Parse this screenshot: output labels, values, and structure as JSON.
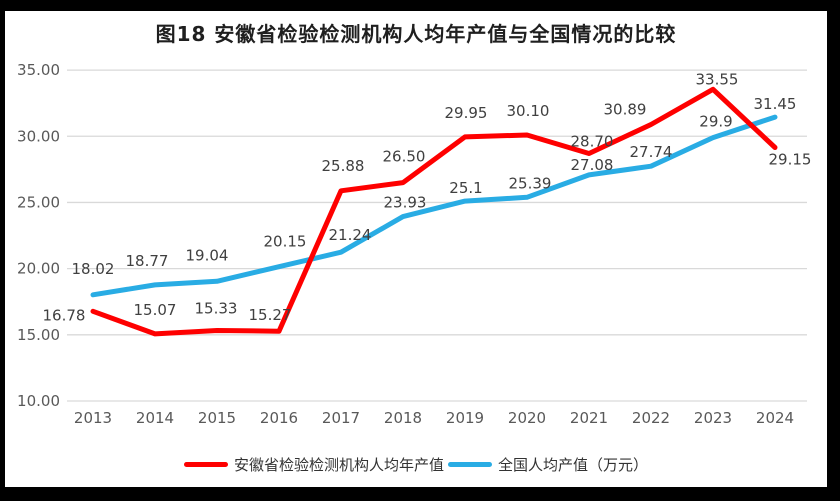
{
  "title": "图18 安徽省检验检测机构人均年产值与全国情况的比较",
  "chart_data": {
    "type": "line",
    "title": "图18 安徽省检验检测机构人均年产值与全国情况的比较",
    "categories": [
      "2013",
      "2014",
      "2015",
      "2016",
      "2017",
      "2018",
      "2019",
      "2020",
      "2021",
      "2022",
      "2023",
      "2024"
    ],
    "y_tick_labels": [
      "35.00",
      "30.00",
      "25.00",
      "20.00",
      "15.00",
      "10.00"
    ],
    "ylim": [
      10,
      35
    ],
    "grid": "horizontal-only",
    "legend_position": "bottom",
    "series": [
      {
        "name": "安徽省检验检测机构人均年产值",
        "color": "#FE0000",
        "values": [
          16.78,
          15.07,
          15.33,
          15.27,
          25.88,
          26.5,
          29.95,
          30.1,
          28.7,
          30.89,
          33.55,
          29.15
        ],
        "labels": [
          "16.78",
          "15.07",
          "15.33",
          "15.27",
          "25.88",
          "26.50",
          "29.95",
          "30.10",
          "28.70",
          "30.89",
          "33.55",
          "29.15"
        ]
      },
      {
        "name": "全国人均产值（万元）",
        "color": "#29ACE4",
        "values": [
          18.02,
          18.77,
          19.04,
          20.15,
          21.24,
          23.93,
          25.1,
          25.39,
          27.08,
          27.74,
          29.9,
          31.45
        ],
        "labels": [
          "18.02",
          "18.77",
          "19.04",
          "20.15",
          "21.24",
          "23.93",
          "25.1",
          "25.39",
          "27.08",
          "27.74",
          "29.9",
          "31.45"
        ]
      }
    ]
  },
  "colors": {
    "frame": "#000000",
    "panel": "#FFFFFF",
    "grid": "#D9D9D9",
    "axis_text": "#595959",
    "data_label": "#404040",
    "title_text": "#1F1F1F"
  }
}
